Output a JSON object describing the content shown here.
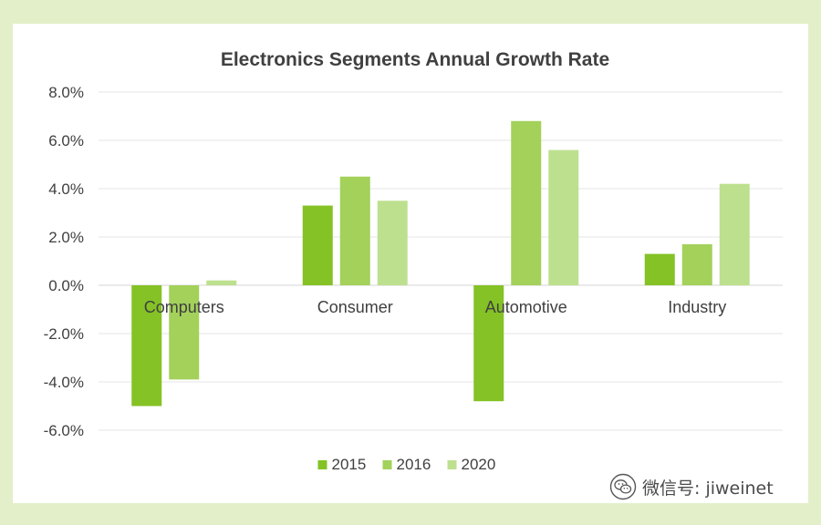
{
  "chart_data": {
    "type": "bar",
    "title": "Electronics Segments Annual Growth Rate",
    "categories": [
      "Computers",
      "Consumer",
      "Automotive",
      "Industry"
    ],
    "series": [
      {
        "name": "2015",
        "values": [
          -5.0,
          3.3,
          -4.8,
          1.3
        ]
      },
      {
        "name": "2016",
        "values": [
          -3.9,
          4.5,
          6.8,
          1.7
        ]
      },
      {
        "name": "2020",
        "values": [
          0.2,
          3.5,
          5.6,
          4.2
        ]
      }
    ],
    "colors": [
      "#84c225",
      "#a3d15a",
      "#bde08f"
    ],
    "yticks": [
      "8.0%",
      "6.0%",
      "4.0%",
      "2.0%",
      "0.0%",
      "-2.0%",
      "-4.0%",
      "-6.0%"
    ],
    "ylim": [
      -6,
      8
    ],
    "xlabel": "",
    "ylabel": "",
    "grid": true,
    "legend": "bottom"
  },
  "watermark": {
    "text": "微信号: jiweinet",
    "icon": "wechat-logo-icon"
  }
}
